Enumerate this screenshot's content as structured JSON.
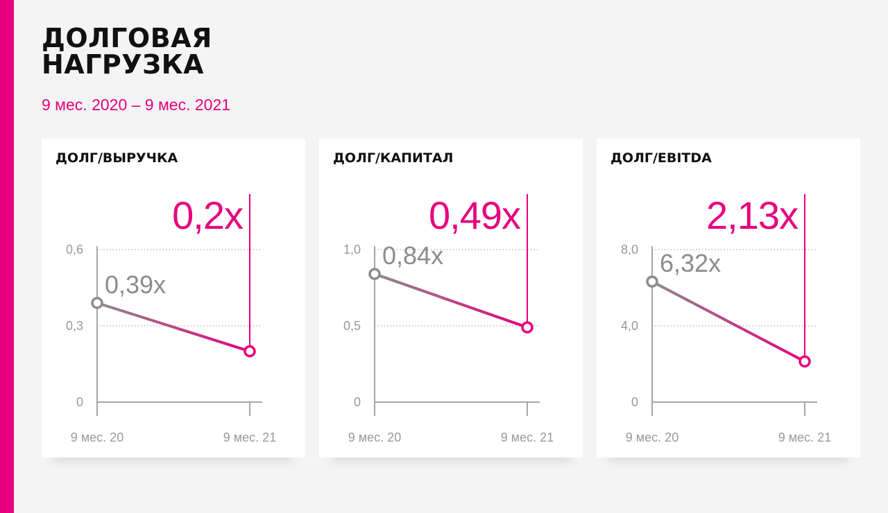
{
  "colors": {
    "accent": "#e6007e",
    "grey": "#8c8c8c",
    "axis": "#a6a6a6",
    "tick": "#999999",
    "title": "#111111",
    "card": "#ffffff",
    "background": "#f4f4f4"
  },
  "header": {
    "title": "ДОЛГОВАЯ\nНАГРУЗКА",
    "subtitle": "9 мес. 2020 – 9 мес. 2021"
  },
  "chart_data": [
    {
      "type": "line",
      "title": "ДОЛГ/ВЫРУЧКА",
      "categories": [
        "9 мес. 20",
        "9 мес. 21"
      ],
      "values": [
        0.39,
        0.2
      ],
      "value_labels": [
        "0,39x",
        "0,2x"
      ],
      "ylim": [
        0,
        0.6
      ],
      "yticks": [
        0,
        0.3,
        0.6
      ],
      "ytick_labels": [
        "0",
        "0,3",
        "0,6"
      ],
      "grid": true
    },
    {
      "type": "line",
      "title": "ДОЛГ/КАПИТАЛ",
      "categories": [
        "9 мес. 20",
        "9 мес. 21"
      ],
      "values": [
        0.84,
        0.49
      ],
      "value_labels": [
        "0,84x",
        "0,49x"
      ],
      "ylim": [
        0,
        1.0
      ],
      "yticks": [
        0,
        0.5,
        1.0
      ],
      "ytick_labels": [
        "0",
        "0,5",
        "1,0"
      ],
      "grid": true
    },
    {
      "type": "line",
      "title": "ДОЛГ/EBITDA",
      "categories": [
        "9 мес. 20",
        "9 мес. 21"
      ],
      "values": [
        6.32,
        2.13
      ],
      "value_labels": [
        "6,32x",
        "2,13x"
      ],
      "ylim": [
        0,
        8.0
      ],
      "yticks": [
        0,
        4.0,
        8.0
      ],
      "ytick_labels": [
        "0",
        "4,0",
        "8,0"
      ],
      "grid": true
    }
  ]
}
